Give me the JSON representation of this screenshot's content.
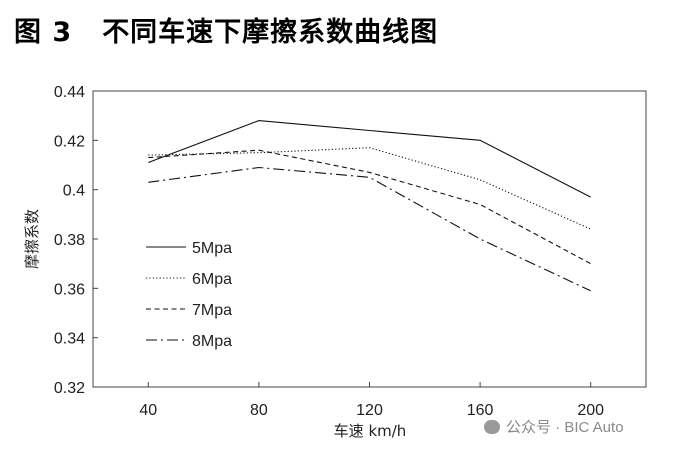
{
  "title": {
    "figure": "图 3",
    "text": "不同车速下摩擦系数曲线图"
  },
  "watermark": "公众号 · BIC Auto",
  "chart_data": {
    "type": "line",
    "title": "不同车速下摩擦系数曲线图",
    "xlabel": "车速 km/h",
    "ylabel": "摩擦系数",
    "x": [
      40,
      80,
      120,
      160,
      200
    ],
    "x_tick_labels": [
      "40",
      "80",
      "120",
      "160",
      "200"
    ],
    "xlim": [
      20,
      220
    ],
    "ylim": [
      0.32,
      0.44
    ],
    "y_ticks": [
      0.32,
      0.34,
      0.36,
      0.38,
      0.4,
      0.42,
      0.44
    ],
    "y_tick_labels": [
      "0.32",
      "0.34",
      "0.36",
      "0.38",
      "0.4",
      "0.42",
      "0.44"
    ],
    "grid": false,
    "legend_position": "left",
    "series": [
      {
        "name": "5Mpa",
        "dash": "solid",
        "values": [
          0.411,
          0.428,
          0.424,
          0.42,
          0.397
        ]
      },
      {
        "name": "6Mpa",
        "dash": "dotted",
        "values": [
          0.414,
          0.415,
          0.417,
          0.404,
          0.384
        ]
      },
      {
        "name": "7Mpa",
        "dash": "dashed",
        "values": [
          0.413,
          0.416,
          0.407,
          0.394,
          0.37
        ]
      },
      {
        "name": "8Mpa",
        "dash": "dash-dot",
        "values": [
          0.403,
          0.409,
          0.405,
          0.38,
          0.359
        ]
      }
    ]
  }
}
